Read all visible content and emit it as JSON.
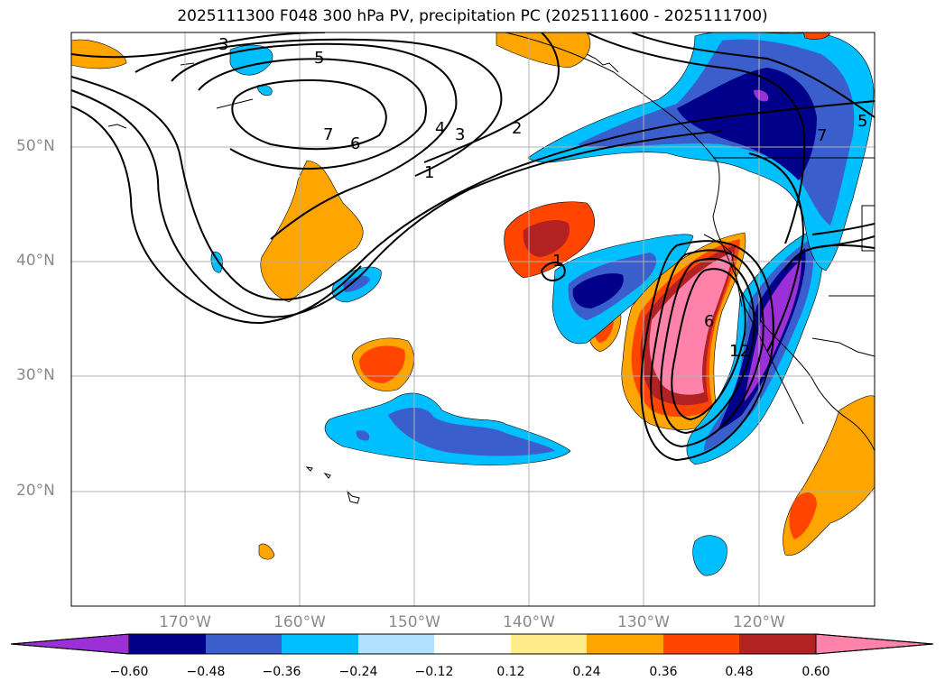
{
  "title": "2025111300 F048 300 hPa PV, precipitation PC (2025111600 - 2025111700)",
  "axes": {
    "lat_labels": [
      "50°N",
      "40°N",
      "30°N",
      "20°N"
    ],
    "lon_labels": [
      "170°W",
      "160°W",
      "150°W",
      "140°W",
      "130°W",
      "120°W"
    ]
  },
  "colorbar": {
    "ticks": [
      "−0.60",
      "−0.48",
      "−0.36",
      "−0.24",
      "−0.12",
      "0.12",
      "0.24",
      "0.36",
      "0.48",
      "0.60"
    ],
    "colors": [
      "#9b30d6",
      "#00008b",
      "#3a5fcd",
      "#00bfff",
      "#b0e2ff",
      "#ffffff",
      "#ffec8b",
      "#ffa500",
      "#ff4500",
      "#b22222",
      "#ff82ab"
    ]
  },
  "contour_labels": [
    "3",
    "5",
    "7",
    "6",
    "4",
    "3",
    "2",
    "1",
    "1",
    "6",
    "5",
    "7",
    "12"
  ]
}
